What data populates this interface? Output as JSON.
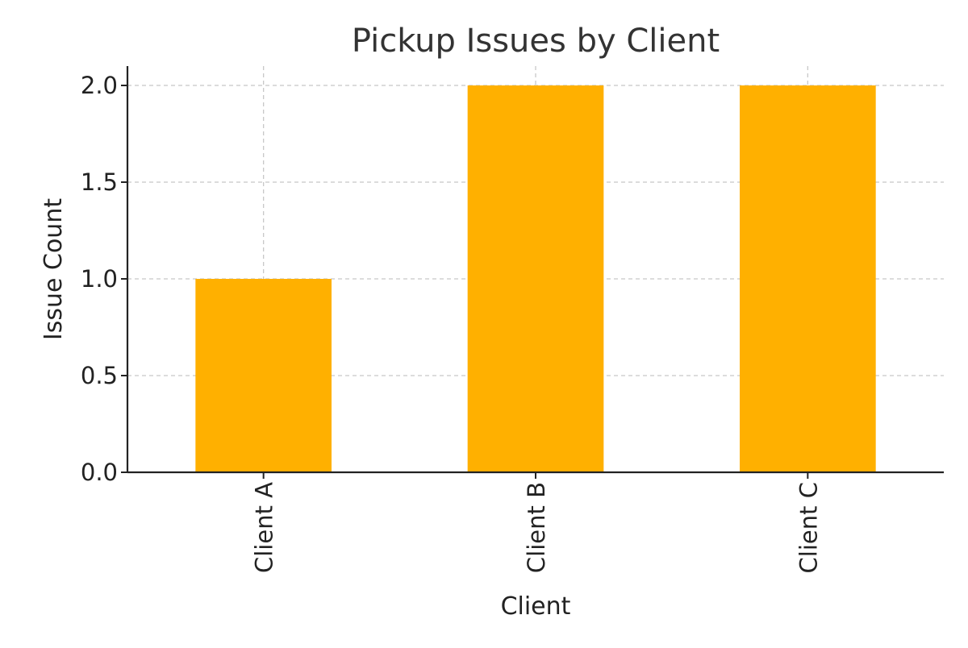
{
  "chart_data": {
    "type": "bar",
    "title": "Pickup Issues by Client",
    "xlabel": "Client",
    "ylabel": "Issue Count",
    "categories": [
      "Client A",
      "Client B",
      "Client C"
    ],
    "values": [
      1,
      2,
      2
    ],
    "ylim": [
      0,
      2.1
    ],
    "yticks": [
      0.0,
      0.5,
      1.0,
      1.5,
      2.0
    ],
    "ytick_labels": [
      "0.0",
      "0.5",
      "1.0",
      "1.5",
      "2.0"
    ],
    "bar_color": "#FFB000",
    "grid": true
  }
}
